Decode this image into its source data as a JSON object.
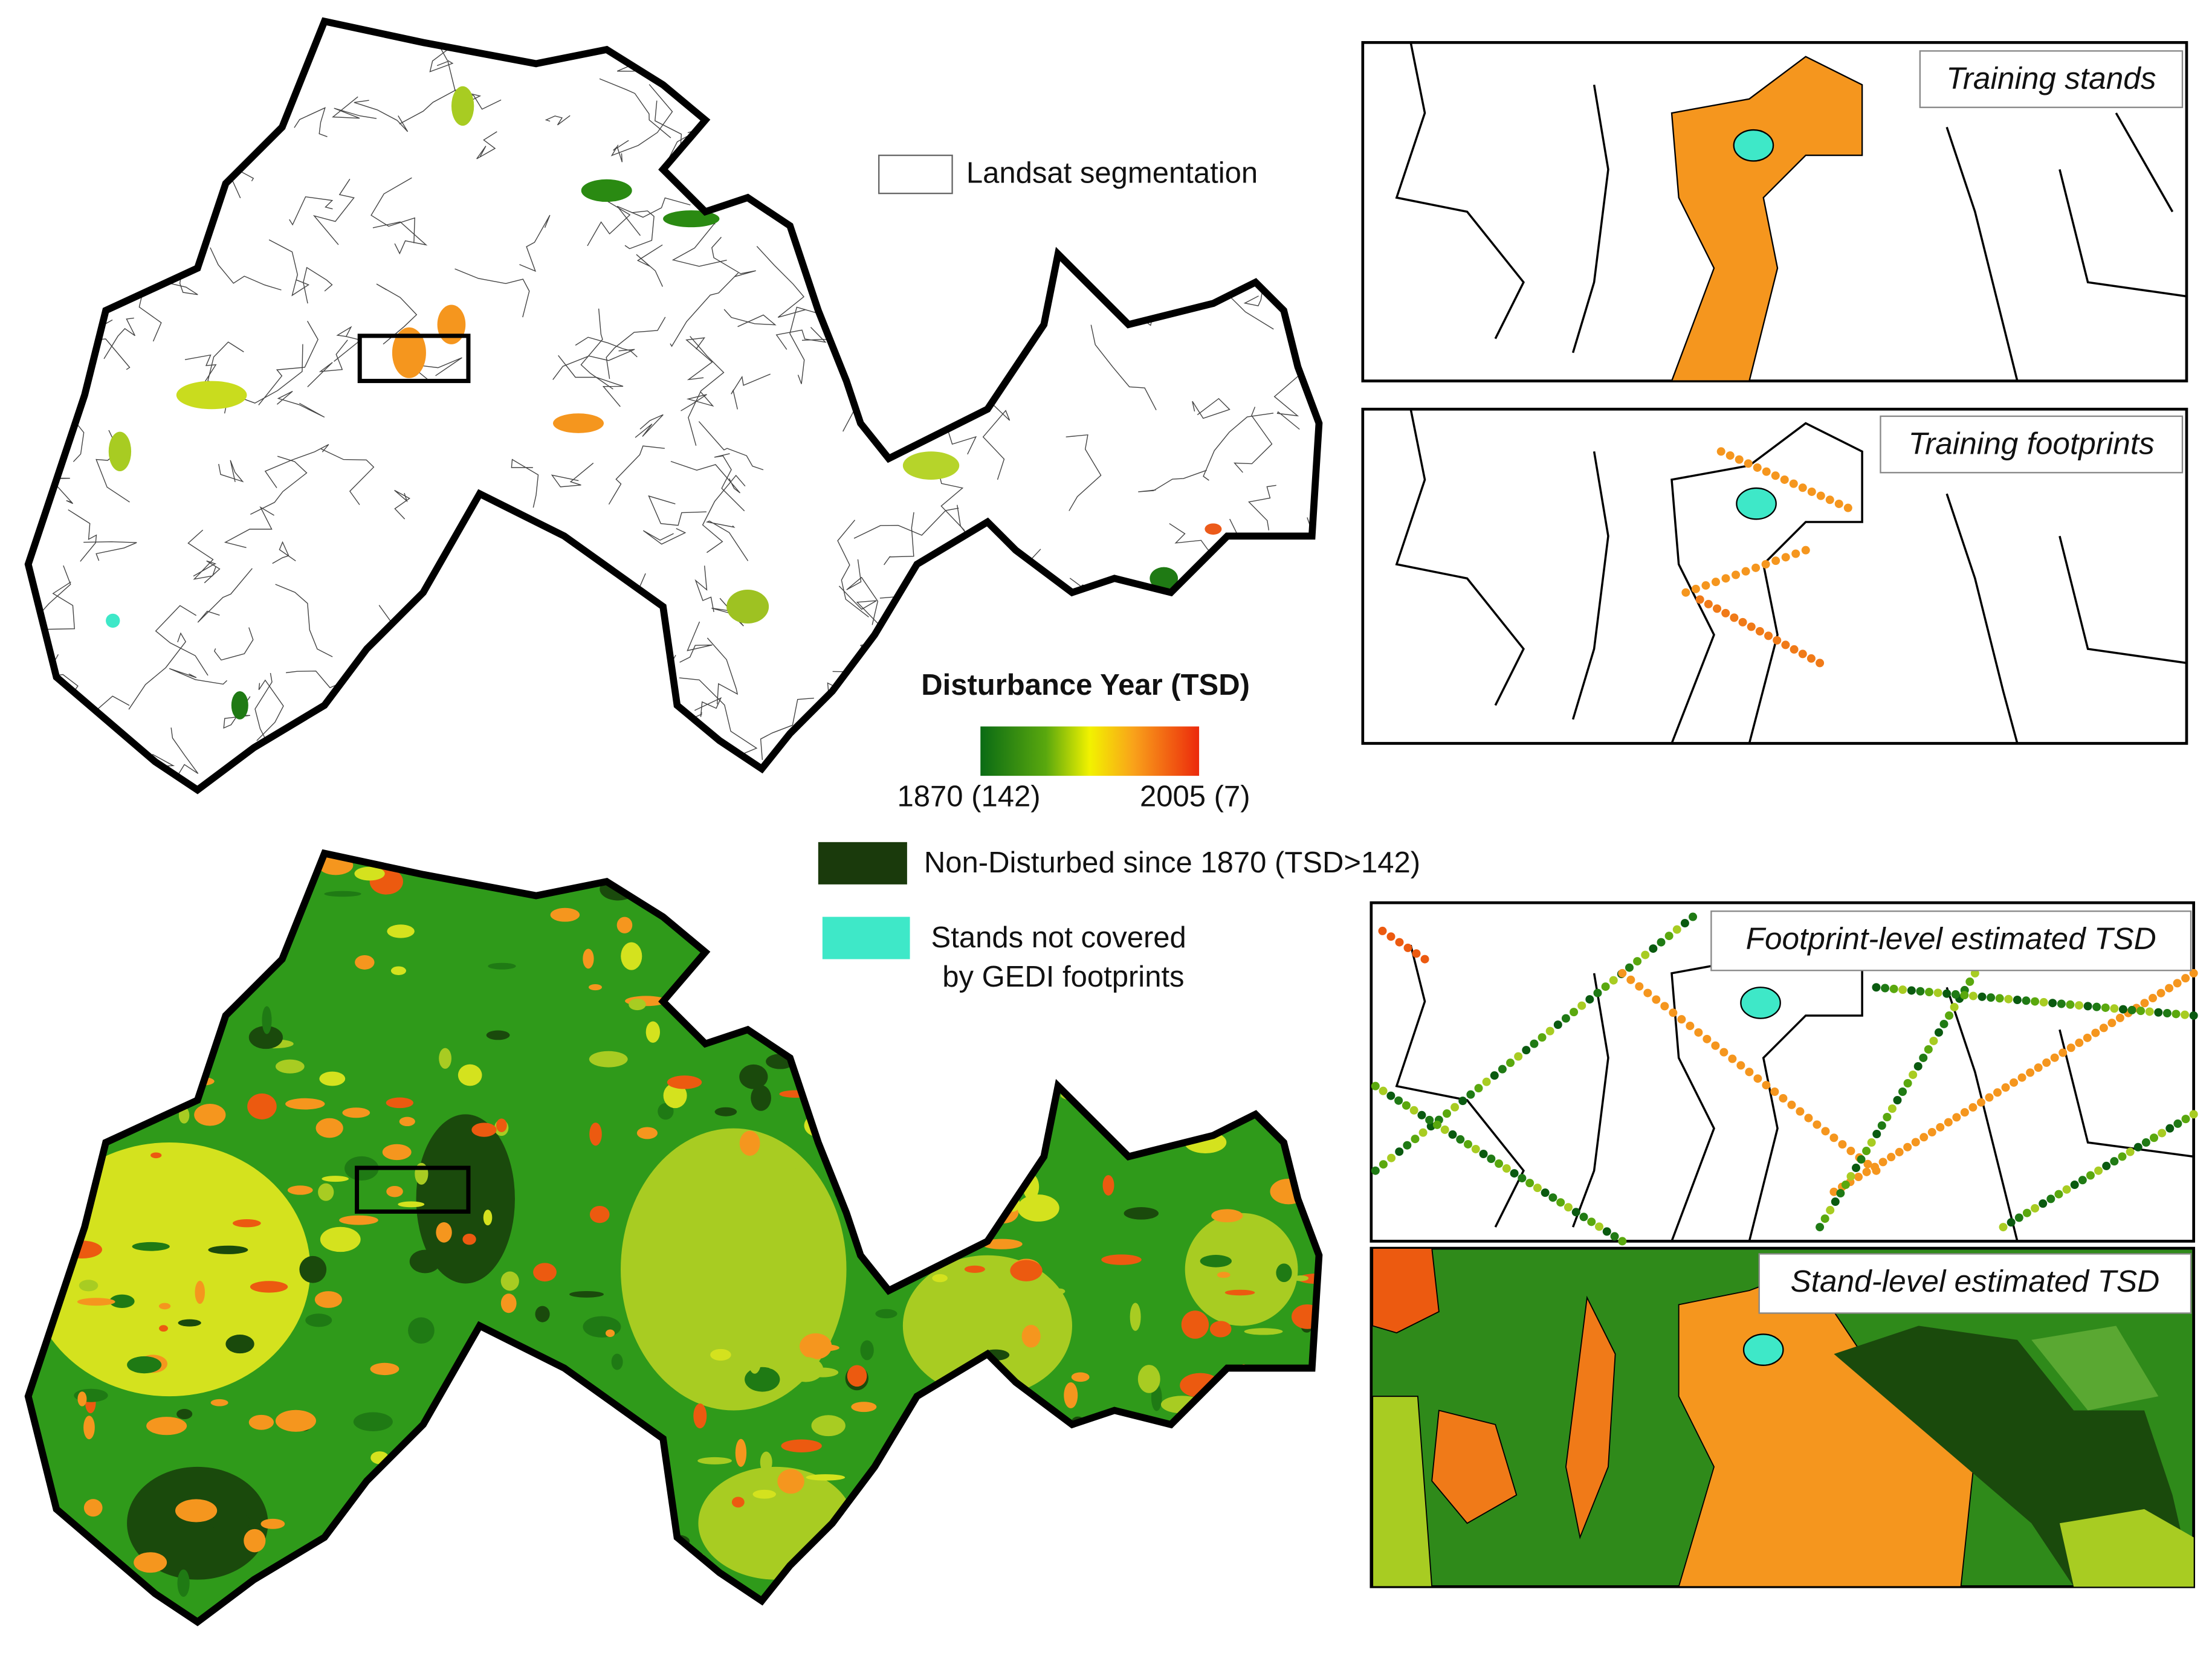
{
  "legend": {
    "segmentation": "Landsat segmentation",
    "colorbar_title": "Disturbance Year (TSD)",
    "colorbar_min": "1870 (142)",
    "colorbar_max": "2005 (7)",
    "non_disturbed": "Non-Disturbed since 1870 (TSD>142)",
    "not_covered_line1": "Stands not covered",
    "not_covered_line2": "by GEDI footprints"
  },
  "panels": [
    "Training stands",
    "Training footprints",
    "Footprint-level estimated TSD",
    "Stand-level estimated TSD"
  ]
}
